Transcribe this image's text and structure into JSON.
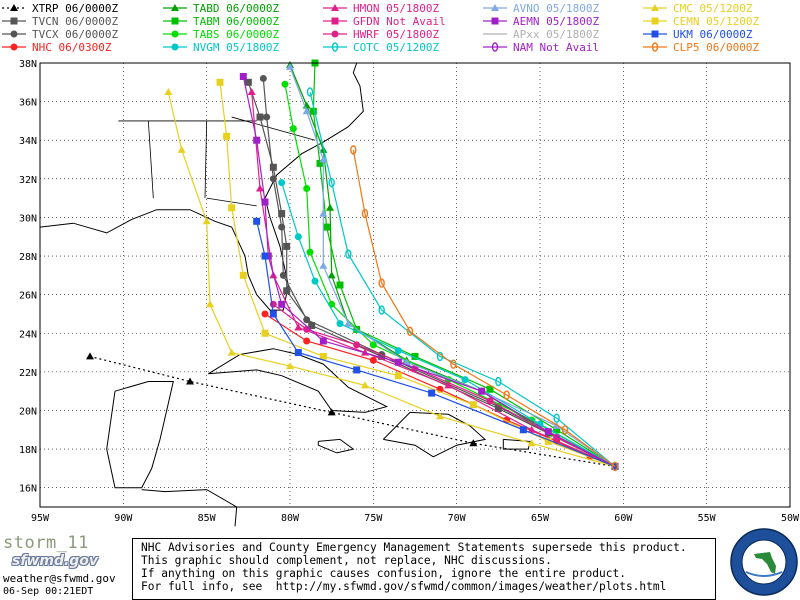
{
  "chart_data": {
    "type": "line",
    "title": "",
    "storm_name": "storm_11",
    "email": "weather@sfwmd.gov",
    "logo_text": "sfwmd.gov",
    "timestamp": "06-Sep 00:21EDT",
    "xlim": [
      -95,
      -50
    ],
    "ylim": [
      15,
      38
    ],
    "x_ticks": [
      {
        "value": -95,
        "label": "95W"
      },
      {
        "value": -90,
        "label": "90W"
      },
      {
        "value": -85,
        "label": "85W"
      },
      {
        "value": -80,
        "label": "80W"
      },
      {
        "value": -75,
        "label": "75W"
      },
      {
        "value": -70,
        "label": "70W"
      },
      {
        "value": -65,
        "label": "65W"
      },
      {
        "value": -60,
        "label": "60W"
      },
      {
        "value": -55,
        "label": "55W"
      },
      {
        "value": -50,
        "label": "50W"
      }
    ],
    "y_ticks": [
      {
        "value": 16,
        "label": "16N"
      },
      {
        "value": 18,
        "label": "18N"
      },
      {
        "value": 20,
        "label": "20N"
      },
      {
        "value": 22,
        "label": "22N"
      },
      {
        "value": 24,
        "label": "24N"
      },
      {
        "value": 26,
        "label": "26N"
      },
      {
        "value": 28,
        "label": "28N"
      },
      {
        "value": 30,
        "label": "30N"
      },
      {
        "value": 32,
        "label": "32N"
      },
      {
        "value": 34,
        "label": "34N"
      },
      {
        "value": 36,
        "label": "36N"
      },
      {
        "value": 38,
        "label": "38N"
      }
    ],
    "grid": true,
    "legend": [
      {
        "name": "XTRP",
        "time": "06/0000Z",
        "color": "#000000",
        "marker": "triangle"
      },
      {
        "name": "TVCN",
        "time": "06/0000Z",
        "color": "#555555",
        "marker": "square"
      },
      {
        "name": "TVCX",
        "time": "06/0000Z",
        "color": "#555555",
        "marker": "circle"
      },
      {
        "name": "NHC",
        "time": "06/0300Z",
        "color": "#ff2020",
        "marker": "circle"
      },
      {
        "name": "TABD",
        "time": "06/0000Z",
        "color": "#00a000",
        "marker": "triangle"
      },
      {
        "name": "TABM",
        "time": "06/0000Z",
        "color": "#00c000",
        "marker": "square"
      },
      {
        "name": "TABS",
        "time": "06/0000Z",
        "color": "#00e000",
        "marker": "circle"
      },
      {
        "name": "NVGM",
        "time": "05/1800Z",
        "color": "#00c8c8",
        "marker": "circle"
      },
      {
        "name": "HMON",
        "time": "05/1800Z",
        "color": "#e0208a",
        "marker": "triangle"
      },
      {
        "name": "GFDN",
        "time": "Not Avail",
        "color": "#e0208a",
        "marker": "square"
      },
      {
        "name": "HWRF",
        "time": "05/1800Z",
        "color": "#e0208a",
        "marker": "circle"
      },
      {
        "name": "COTC",
        "time": "05/1200Z",
        "color": "#00c8c8",
        "marker": "ring"
      },
      {
        "name": "AVNO",
        "time": "05/1800Z",
        "color": "#7fa8e8",
        "marker": "triangle"
      },
      {
        "name": "AEMN",
        "time": "05/1800Z",
        "color": "#a020c8",
        "marker": "square"
      },
      {
        "name": "APxx",
        "time": "05/1800Z",
        "color": "#b0b0b0",
        "marker": "none"
      },
      {
        "name": "NAM",
        "time": "Not Avail",
        "color": "#a020c8",
        "marker": "ring"
      },
      {
        "name": "CMC",
        "time": "05/1200Z",
        "color": "#e8d020",
        "marker": "triangle"
      },
      {
        "name": "CEMN",
        "time": "05/1200Z",
        "color": "#e8d020",
        "marker": "square"
      },
      {
        "name": "UKM",
        "time": "06/0000Z",
        "color": "#2050e8",
        "marker": "square"
      },
      {
        "name": "CLP5",
        "time": "06/0000Z",
        "color": "#f07818",
        "marker": "ring"
      }
    ],
    "series": [
      {
        "name": "XTRP",
        "color": "#000000",
        "marker": "triangle",
        "dashed": true,
        "points": [
          [
            -60.5,
            17.1
          ],
          [
            -69,
            18.3
          ],
          [
            -77.5,
            19.9
          ],
          [
            -86,
            21.5
          ],
          [
            -92,
            22.8
          ]
        ]
      },
      {
        "name": "TVCN",
        "color": "#555555",
        "marker": "square",
        "points": [
          [
            -60.5,
            17.1
          ],
          [
            -67.5,
            20.1
          ],
          [
            -74.5,
            22.8
          ],
          [
            -78.7,
            24.4
          ],
          [
            -80.2,
            26.2
          ],
          [
            -80.2,
            28.5
          ],
          [
            -80.5,
            30.2
          ],
          [
            -81.0,
            32.6
          ],
          [
            -81.8,
            35.2
          ],
          [
            -82.5,
            37.0
          ]
        ]
      },
      {
        "name": "TVCX",
        "color": "#555555",
        "marker": "circle",
        "points": [
          [
            -60.5,
            17.1
          ],
          [
            -67.5,
            20.2
          ],
          [
            -74.5,
            22.9
          ],
          [
            -79.0,
            24.7
          ],
          [
            -80.4,
            27.0
          ],
          [
            -80.5,
            29.5
          ],
          [
            -81.0,
            32.0
          ],
          [
            -81.4,
            35.2
          ],
          [
            -81.6,
            37.2
          ]
        ]
      },
      {
        "name": "NHC",
        "color": "#ff2020",
        "marker": "circle",
        "points": [
          [
            -60.5,
            17.1
          ],
          [
            -62.0,
            17.6
          ],
          [
            -64.0,
            18.4
          ],
          [
            -67.0,
            19.5
          ],
          [
            -71.0,
            21.1
          ],
          [
            -75.0,
            22.6
          ],
          [
            -79.0,
            23.6
          ],
          [
            -81.5,
            25.0
          ]
        ]
      },
      {
        "name": "TABD",
        "color": "#00a000",
        "marker": "triangle",
        "points": [
          [
            -60.5,
            17.1
          ],
          [
            -64.5,
            18.8
          ],
          [
            -68.5,
            21.0
          ],
          [
            -73.0,
            22.6
          ],
          [
            -76.5,
            24.5
          ],
          [
            -77.5,
            27.0
          ],
          [
            -77.6,
            30.5
          ],
          [
            -78.0,
            33.5
          ],
          [
            -79.0,
            35.8
          ],
          [
            -80.0,
            37.9
          ]
        ]
      },
      {
        "name": "TABM",
        "color": "#00c000",
        "marker": "square",
        "points": [
          [
            -60.5,
            17.1
          ],
          [
            -64.0,
            19.0
          ],
          [
            -68.0,
            21.1
          ],
          [
            -72.5,
            22.8
          ],
          [
            -76.0,
            24.2
          ],
          [
            -77.0,
            26.5
          ],
          [
            -77.8,
            29.5
          ],
          [
            -78.2,
            32.8
          ],
          [
            -78.6,
            35.5
          ],
          [
            -78.5,
            38.0
          ]
        ]
      },
      {
        "name": "TABS",
        "color": "#00e000",
        "marker": "circle",
        "points": [
          [
            -60.5,
            17.1
          ],
          [
            -65.5,
            19.5
          ],
          [
            -70.5,
            21.6
          ],
          [
            -75.0,
            23.4
          ],
          [
            -77.5,
            25.5
          ],
          [
            -78.8,
            28.2
          ],
          [
            -79.0,
            31.5
          ],
          [
            -79.8,
            34.6
          ],
          [
            -80.3,
            36.9
          ]
        ]
      },
      {
        "name": "NVGM",
        "color": "#00c8c8",
        "marker": "circle",
        "points": [
          [
            -60.5,
            17.1
          ],
          [
            -65.0,
            19.3
          ],
          [
            -69.5,
            21.6
          ],
          [
            -73.5,
            23.1
          ],
          [
            -77.0,
            24.5
          ],
          [
            -78.5,
            26.7
          ],
          [
            -79.5,
            29.0
          ],
          [
            -80.5,
            31.8
          ]
        ]
      },
      {
        "name": "HMON",
        "color": "#e0208a",
        "marker": "triangle",
        "points": [
          [
            -60.5,
            17.1
          ],
          [
            -65.5,
            19.0
          ],
          [
            -70.5,
            21.3
          ],
          [
            -75.5,
            23.0
          ],
          [
            -79.5,
            24.3
          ],
          [
            -81.0,
            27.0
          ],
          [
            -81.8,
            31.5
          ],
          [
            -82.3,
            36.5
          ]
        ]
      },
      {
        "name": "HWRF",
        "color": "#e0208a",
        "marker": "circle",
        "points": [
          [
            -60.5,
            17.1
          ],
          [
            -64.0,
            18.6
          ],
          [
            -68.0,
            20.5
          ],
          [
            -72.5,
            22.2
          ],
          [
            -76.0,
            23.4
          ],
          [
            -79.0,
            24.2
          ],
          [
            -81.0,
            25.5
          ]
        ]
      },
      {
        "name": "COTC",
        "color": "#00c8c8",
        "marker": "ring",
        "points": [
          [
            -60.5,
            17.1
          ],
          [
            -64.0,
            19.6
          ],
          [
            -67.5,
            21.5
          ],
          [
            -71.0,
            22.8
          ],
          [
            -74.5,
            25.2
          ],
          [
            -76.5,
            28.1
          ],
          [
            -77.5,
            31.8
          ],
          [
            -78.8,
            36.5
          ]
        ]
      },
      {
        "name": "AVNO",
        "color": "#7fa8e8",
        "marker": "triangle",
        "points": [
          [
            -60.5,
            17.1
          ],
          [
            -64.0,
            19.2
          ],
          [
            -68.5,
            21.0
          ],
          [
            -73.0,
            22.5
          ],
          [
            -76.5,
            24.5
          ],
          [
            -78.0,
            27.5
          ],
          [
            -78.0,
            30.2
          ],
          [
            -78.0,
            33.0
          ],
          [
            -79.0,
            35.5
          ],
          [
            -80.0,
            37.8
          ]
        ]
      },
      {
        "name": "AEMN",
        "color": "#a020c8",
        "marker": "square",
        "points": [
          [
            -60.5,
            17.1
          ],
          [
            -64.5,
            18.9
          ],
          [
            -68.5,
            21.0
          ],
          [
            -73.5,
            22.5
          ],
          [
            -78.0,
            23.6
          ],
          [
            -80.5,
            25.5
          ],
          [
            -81.3,
            28.0
          ],
          [
            -81.5,
            30.8
          ],
          [
            -82.0,
            34.0
          ],
          [
            -82.8,
            37.3
          ]
        ]
      },
      {
        "name": "CMC",
        "color": "#e8d020",
        "marker": "triangle",
        "points": [
          [
            -60.5,
            17.1
          ],
          [
            -65.5,
            18.3
          ],
          [
            -71.0,
            19.7
          ],
          [
            -75.5,
            21.3
          ],
          [
            -80.0,
            22.3
          ],
          [
            -83.5,
            23.0
          ],
          [
            -84.8,
            25.5
          ],
          [
            -85.0,
            29.8
          ],
          [
            -86.5,
            33.5
          ],
          [
            -87.3,
            36.5
          ]
        ]
      },
      {
        "name": "CEMN",
        "color": "#e8d020",
        "marker": "square",
        "points": [
          [
            -60.5,
            17.1
          ],
          [
            -64.5,
            18.4
          ],
          [
            -69.0,
            20.3
          ],
          [
            -73.5,
            21.8
          ],
          [
            -78.0,
            22.8
          ],
          [
            -81.5,
            24.0
          ],
          [
            -82.8,
            27.0
          ],
          [
            -83.5,
            30.5
          ],
          [
            -83.8,
            34.2
          ],
          [
            -84.2,
            37.0
          ]
        ]
      },
      {
        "name": "UKM",
        "color": "#2050e8",
        "marker": "square",
        "points": [
          [
            -60.5,
            17.1
          ],
          [
            -66.0,
            19.0
          ],
          [
            -71.5,
            20.9
          ],
          [
            -76.0,
            22.1
          ],
          [
            -79.5,
            23.0
          ],
          [
            -81.0,
            25.0
          ],
          [
            -81.5,
            28.0
          ],
          [
            -82.0,
            29.8
          ]
        ]
      },
      {
        "name": "CLP5",
        "color": "#f07818",
        "marker": "ring",
        "points": [
          [
            -60.5,
            17.1
          ],
          [
            -63.5,
            19.0
          ],
          [
            -67.0,
            20.8
          ],
          [
            -70.2,
            22.4
          ],
          [
            -72.8,
            24.1
          ],
          [
            -74.5,
            26.6
          ],
          [
            -75.5,
            30.2
          ],
          [
            -76.2,
            33.5
          ]
        ]
      }
    ]
  },
  "disclaimer": {
    "line1": "NHC Advisories and County Emergency Management Statements supersede this product.",
    "line2": "This graphic should complement, not replace, NHC discussions.",
    "line3": "If anything on this graphic causes confusion, ignore the entire product.",
    "line4": "For full info, see  http://my.sfwmd.gov/sfwmd/common/images/weather/plots.html"
  },
  "seal_text": "SOUTH FLORIDA WATER MANAGEMENT DISTRICT"
}
